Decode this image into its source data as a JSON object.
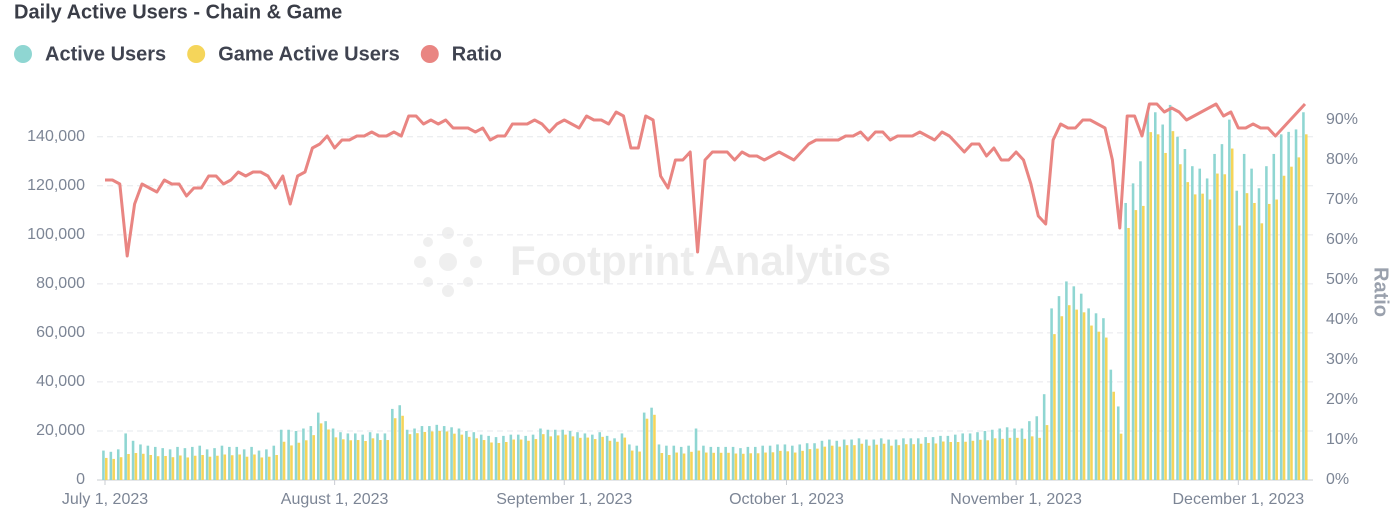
{
  "chart_data": {
    "type": "combo",
    "title": "Daily Active Users - Chain & Game",
    "watermark": "Footprint Analytics",
    "y2label": "Ratio",
    "grid": true,
    "legend": "top-left",
    "x": [
      "2023-07-01",
      "2023-07-02",
      "2023-07-03",
      "2023-07-04",
      "2023-07-05",
      "2023-07-06",
      "2023-07-07",
      "2023-07-08",
      "2023-07-09",
      "2023-07-10",
      "2023-07-11",
      "2023-07-12",
      "2023-07-13",
      "2023-07-14",
      "2023-07-15",
      "2023-07-16",
      "2023-07-17",
      "2023-07-18",
      "2023-07-19",
      "2023-07-20",
      "2023-07-21",
      "2023-07-22",
      "2023-07-23",
      "2023-07-24",
      "2023-07-25",
      "2023-07-26",
      "2023-07-27",
      "2023-07-28",
      "2023-07-29",
      "2023-07-30",
      "2023-07-31",
      "2023-08-01",
      "2023-08-02",
      "2023-08-03",
      "2023-08-04",
      "2023-08-05",
      "2023-08-06",
      "2023-08-07",
      "2023-08-08",
      "2023-08-09",
      "2023-08-10",
      "2023-08-11",
      "2023-08-12",
      "2023-08-13",
      "2023-08-14",
      "2023-08-15",
      "2023-08-16",
      "2023-08-17",
      "2023-08-18",
      "2023-08-19",
      "2023-08-20",
      "2023-08-21",
      "2023-08-22",
      "2023-08-23",
      "2023-08-24",
      "2023-08-25",
      "2023-08-26",
      "2023-08-27",
      "2023-08-28",
      "2023-08-29",
      "2023-08-30",
      "2023-08-31",
      "2023-09-01",
      "2023-09-02",
      "2023-09-03",
      "2023-09-04",
      "2023-09-05",
      "2023-09-06",
      "2023-09-07",
      "2023-09-08",
      "2023-09-09",
      "2023-09-10",
      "2023-09-11",
      "2023-09-12",
      "2023-09-13",
      "2023-09-14",
      "2023-09-15",
      "2023-09-16",
      "2023-09-17",
      "2023-09-18",
      "2023-09-19",
      "2023-09-20",
      "2023-09-21",
      "2023-09-22",
      "2023-09-23",
      "2023-09-24",
      "2023-09-25",
      "2023-09-26",
      "2023-09-27",
      "2023-09-28",
      "2023-09-29",
      "2023-09-30",
      "2023-10-01",
      "2023-10-02",
      "2023-10-03",
      "2023-10-04",
      "2023-10-05",
      "2023-10-06",
      "2023-10-07",
      "2023-10-08",
      "2023-10-09",
      "2023-10-10",
      "2023-10-11",
      "2023-10-12",
      "2023-10-13",
      "2023-10-14",
      "2023-10-15",
      "2023-10-16",
      "2023-10-17",
      "2023-10-18",
      "2023-10-19",
      "2023-10-20",
      "2023-10-21",
      "2023-10-22",
      "2023-10-23",
      "2023-10-24",
      "2023-10-25",
      "2023-10-26",
      "2023-10-27",
      "2023-10-28",
      "2023-10-29",
      "2023-10-30",
      "2023-10-31",
      "2023-11-01",
      "2023-11-02",
      "2023-11-03",
      "2023-11-04",
      "2023-11-05",
      "2023-11-06",
      "2023-11-07",
      "2023-11-08",
      "2023-11-09",
      "2023-11-10",
      "2023-11-11",
      "2023-11-12",
      "2023-11-13",
      "2023-11-14",
      "2023-11-15",
      "2023-11-16",
      "2023-11-17",
      "2023-11-18",
      "2023-11-19",
      "2023-11-20",
      "2023-11-21",
      "2023-11-22",
      "2023-11-23",
      "2023-11-24",
      "2023-11-25",
      "2023-11-26",
      "2023-11-27",
      "2023-11-28",
      "2023-11-29",
      "2023-11-30",
      "2023-12-01",
      "2023-12-02",
      "2023-12-03",
      "2023-12-04",
      "2023-12-05",
      "2023-12-06",
      "2023-12-07",
      "2023-12-08",
      "2023-12-09",
      "2023-12-10"
    ],
    "xticks": [
      {
        "value": "2023-07-01",
        "label": "July 1, 2023"
      },
      {
        "value": "2023-08-01",
        "label": "August 1, 2023"
      },
      {
        "value": "2023-09-01",
        "label": "September 1, 2023"
      },
      {
        "value": "2023-10-01",
        "label": "October 1, 2023"
      },
      {
        "value": "2023-11-01",
        "label": "November 1, 2023"
      },
      {
        "value": "2023-12-01",
        "label": "December 1, 2023"
      }
    ],
    "ylim": [
      0,
      155000
    ],
    "yticks": [
      0,
      {
        "value": 20000,
        "label": "20,000"
      },
      {
        "value": 40000,
        "label": "40,000"
      },
      {
        "value": 60000,
        "label": "60,000"
      },
      {
        "value": 80000,
        "label": "80,000"
      },
      {
        "value": 100000,
        "label": "100,000"
      },
      {
        "value": 120000,
        "label": "120,000"
      },
      {
        "value": 140000,
        "label": "140,000"
      }
    ],
    "y2lim": [
      0,
      95
    ],
    "y2ticks": [
      {
        "value": 0,
        "label": "0%"
      },
      {
        "value": 10,
        "label": "10%"
      },
      {
        "value": 20,
        "label": "20%"
      },
      {
        "value": 30,
        "label": "30%"
      },
      {
        "value": 40,
        "label": "40%"
      },
      {
        "value": 50,
        "label": "50%"
      },
      {
        "value": 60,
        "label": "60%"
      },
      {
        "value": 70,
        "label": "70%"
      },
      {
        "value": 80,
        "label": "80%"
      },
      {
        "value": 90,
        "label": "90%"
      }
    ],
    "series": [
      {
        "name": "Active Users",
        "type": "bar",
        "color": "#8fd6d2",
        "values": [
          12000,
          11500,
          12500,
          19000,
          16000,
          14500,
          14000,
          13500,
          13000,
          12500,
          13500,
          13000,
          13500,
          14000,
          12500,
          13000,
          14000,
          13500,
          13500,
          12500,
          13500,
          12000,
          12500,
          14000,
          20500,
          20500,
          20000,
          21000,
          22000,
          27500,
          24000,
          21000,
          19500,
          19000,
          19000,
          18500,
          19500,
          19000,
          19000,
          29000,
          30500,
          20500,
          21000,
          22000,
          22000,
          22500,
          22000,
          21500,
          21000,
          20000,
          19500,
          18500,
          18000,
          17500,
          18000,
          18500,
          18500,
          18000,
          18500,
          21000,
          20500,
          20500,
          20500,
          20000,
          19500,
          19000,
          18500,
          19500,
          18000,
          17000,
          19000,
          14500,
          14000,
          27500,
          29500,
          14500,
          14000,
          14000,
          13500,
          14000,
          21000,
          14000,
          13500,
          13500,
          13500,
          13500,
          13000,
          13500,
          13500,
          14000,
          14000,
          14500,
          14500,
          14000,
          14500,
          15000,
          15000,
          16000,
          16500,
          16000,
          16500,
          16500,
          17000,
          16500,
          16500,
          17000,
          16500,
          16500,
          17000,
          17000,
          17000,
          17500,
          17500,
          18000,
          18000,
          18500,
          19000,
          19000,
          19500,
          20000,
          20500,
          21000,
          21500,
          21000,
          21000,
          24000,
          26000,
          35000,
          70000,
          75000,
          81000,
          79000,
          76000,
          70000,
          68000,
          66000,
          45000,
          30000,
          113000,
          121000,
          130000,
          151000,
          150000,
          145000,
          153000,
          140000,
          135000,
          128000,
          127000,
          123000,
          133000,
          137000,
          147000,
          118000,
          133000,
          127000,
          119000,
          128000,
          133000,
          141000,
          142000,
          143000,
          150000
        ]
      },
      {
        "name": "Game Active Users",
        "type": "bar",
        "color": "#f5d55a",
        "values": [
          9000,
          8600,
          9300,
          10600,
          11000,
          10700,
          10200,
          9700,
          9800,
          9300,
          10000,
          9200,
          9900,
          10200,
          9500,
          9900,
          10400,
          10100,
          10400,
          9500,
          10400,
          9200,
          9500,
          10200,
          15600,
          14100,
          15200,
          16200,
          18300,
          23100,
          20600,
          17400,
          16600,
          16200,
          16300,
          15900,
          17000,
          16300,
          16300,
          25200,
          26200,
          18700,
          19100,
          19600,
          19800,
          20000,
          19800,
          18900,
          18500,
          17600,
          17000,
          16300,
          15300,
          15100,
          15500,
          16500,
          16500,
          16000,
          16700,
          18700,
          17800,
          18200,
          18500,
          17800,
          17200,
          17300,
          16700,
          17600,
          16000,
          15600,
          17300,
          12000,
          11600,
          25000,
          26600,
          11000,
          10200,
          11200,
          10800,
          11500,
          12000,
          11200,
          11100,
          11100,
          11100,
          10800,
          10700,
          10900,
          10900,
          11200,
          11300,
          11900,
          11700,
          11200,
          11900,
          12600,
          12800,
          13600,
          14000,
          13600,
          14200,
          14200,
          14800,
          14000,
          14400,
          14800,
          14000,
          14200,
          14600,
          14600,
          14800,
          15100,
          14900,
          15700,
          15500,
          15500,
          15600,
          16000,
          16400,
          16200,
          17000,
          16800,
          17200,
          17200,
          16800,
          17800,
          17200,
          22400,
          59500,
          66800,
          71300,
          69500,
          68400,
          63000,
          60500,
          58100,
          36000,
          18900,
          102800,
          110100,
          111800,
          141900,
          141000,
          133400,
          142300,
          128800,
          121500,
          116500,
          116800,
          114400,
          125000,
          124700,
          135200,
          103800,
          117000,
          113000,
          104700,
          112600,
          114400,
          124100,
          127800,
          131600,
          141000
        ]
      },
      {
        "name": "Ratio",
        "type": "line",
        "axis": "y2",
        "color": "#e98582",
        "values": [
          75,
          75,
          74,
          56,
          69,
          74,
          73,
          72,
          75,
          74,
          74,
          71,
          73,
          73,
          76,
          76,
          74,
          75,
          77,
          76,
          77,
          77,
          76,
          73,
          76,
          69,
          76,
          77,
          83,
          84,
          86,
          83,
          85,
          85,
          86,
          86,
          87,
          86,
          86,
          87,
          86,
          91,
          91,
          89,
          90,
          89,
          90,
          88,
          88,
          88,
          87,
          88,
          85,
          86,
          86,
          89,
          89,
          89,
          90,
          89,
          87,
          89,
          90,
          89,
          88,
          91,
          90,
          90,
          89,
          92,
          91,
          83,
          83,
          91,
          90,
          76,
          73,
          80,
          80,
          82,
          57,
          80,
          82,
          82,
          82,
          80,
          82,
          81,
          81,
          80,
          81,
          82,
          81,
          80,
          82,
          84,
          85,
          85,
          85,
          85,
          86,
          86,
          87,
          85,
          87,
          87,
          85,
          86,
          86,
          86,
          87,
          86,
          85,
          87,
          86,
          84,
          82,
          84,
          84,
          81,
          83,
          80,
          80,
          82,
          80,
          74,
          66,
          64,
          85,
          89,
          88,
          88,
          90,
          90,
          89,
          88,
          80,
          63,
          91,
          91,
          86,
          94,
          94,
          92,
          93,
          92,
          90,
          91,
          92,
          93,
          94,
          91,
          92,
          88,
          88,
          89,
          88,
          88,
          86,
          88,
          90,
          92,
          94
        ]
      }
    ]
  }
}
